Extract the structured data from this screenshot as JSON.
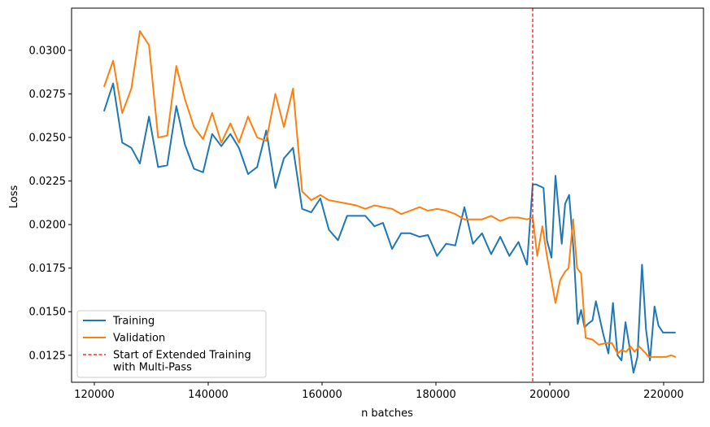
{
  "chart_data": {
    "type": "line",
    "title": "",
    "xlabel": "n batches",
    "ylabel": "Loss",
    "xlim": [
      116000,
      227000
    ],
    "ylim": [
      0.01095,
      0.03242
    ],
    "xticks": [
      120000,
      140000,
      160000,
      180000,
      200000,
      220000
    ],
    "xtick_labels": [
      "120000",
      "140000",
      "160000",
      "180000",
      "200000",
      "220000"
    ],
    "yticks": [
      0.0125,
      0.015,
      0.0175,
      0.02,
      0.0225,
      0.025,
      0.0275,
      0.03
    ],
    "ytick_labels": [
      "0.0125",
      "0.0150",
      "0.0175",
      "0.0200",
      "0.0225",
      "0.0250",
      "0.0275",
      "0.0300"
    ],
    "grid": false,
    "legend_position": "lower-left",
    "series": [
      {
        "name": "Training",
        "color": "#1f77b4",
        "x": [
          121700,
          123300,
          124900,
          126500,
          128000,
          129600,
          131200,
          132800,
          134400,
          135900,
          137500,
          139100,
          140700,
          142300,
          143900,
          145400,
          147000,
          148600,
          150200,
          151800,
          153300,
          154900,
          156500,
          158100,
          159700,
          161200,
          162800,
          164400,
          166000,
          167600,
          169200,
          170700,
          172300,
          173900,
          175500,
          177100,
          178600,
          180200,
          181800,
          183400,
          185000,
          186500,
          188100,
          189700,
          191300,
          192900,
          194500,
          196000,
          197000,
          197600,
          198300,
          198900,
          199500,
          200300,
          201000,
          202100,
          202700,
          203400,
          204200,
          204900,
          205500,
          206100,
          206700,
          207500,
          208100,
          209400,
          210300,
          211100,
          211900,
          212600,
          213300,
          214100,
          214700,
          215400,
          216200,
          216900,
          217600,
          218400,
          219100,
          219900,
          220700,
          221400,
          222100
        ],
        "y": [
          0.0265,
          0.0281,
          0.0247,
          0.0244,
          0.0235,
          0.0262,
          0.0233,
          0.0234,
          0.0268,
          0.0246,
          0.0232,
          0.023,
          0.0252,
          0.0245,
          0.0252,
          0.0244,
          0.0229,
          0.0233,
          0.0254,
          0.0221,
          0.0238,
          0.0244,
          0.0209,
          0.0207,
          0.0215,
          0.0197,
          0.0191,
          0.0205,
          0.0205,
          0.0205,
          0.0199,
          0.0201,
          0.0186,
          0.0195,
          0.0195,
          0.0193,
          0.0194,
          0.0182,
          0.0189,
          0.0188,
          0.021,
          0.0189,
          0.0195,
          0.0183,
          0.0193,
          0.0182,
          0.019,
          0.0177,
          0.0223,
          0.0223,
          0.0222,
          0.0221,
          0.0191,
          0.0181,
          0.0228,
          0.0189,
          0.0212,
          0.0217,
          0.0184,
          0.0143,
          0.0151,
          0.0141,
          0.0143,
          0.0145,
          0.0156,
          0.0137,
          0.0126,
          0.0155,
          0.0125,
          0.0122,
          0.0144,
          0.0128,
          0.0115,
          0.0124,
          0.0177,
          0.014,
          0.0122,
          0.0153,
          0.0142,
          0.0138,
          0.0138,
          0.0138,
          0.0138
        ]
      },
      {
        "name": "Validation",
        "color": "#ff7f0e",
        "x": [
          121700,
          123300,
          124900,
          126500,
          128000,
          129600,
          131200,
          132800,
          134400,
          135900,
          137500,
          139100,
          140700,
          142300,
          143900,
          145400,
          147000,
          148600,
          150200,
          151800,
          153300,
          154900,
          156500,
          158100,
          159700,
          161200,
          162800,
          164400,
          166000,
          167600,
          169200,
          170700,
          172300,
          173900,
          175500,
          177100,
          178600,
          180200,
          181800,
          183400,
          185000,
          186500,
          188100,
          189700,
          191300,
          192900,
          194500,
          196000,
          197000,
          197800,
          198700,
          199500,
          201000,
          201800,
          202700,
          203300,
          204100,
          204800,
          205500,
          206300,
          207500,
          208600,
          209900,
          210900,
          211900,
          212600,
          213400,
          214200,
          214900,
          215700,
          216600,
          217400,
          218200,
          219300,
          220400,
          221300,
          222100
        ],
        "y": [
          0.0279,
          0.0294,
          0.0264,
          0.0278,
          0.0311,
          0.0303,
          0.025,
          0.0251,
          0.0291,
          0.0272,
          0.0256,
          0.0249,
          0.0264,
          0.0247,
          0.0258,
          0.0247,
          0.0262,
          0.025,
          0.0248,
          0.0275,
          0.0256,
          0.0278,
          0.0219,
          0.0214,
          0.0217,
          0.0214,
          0.0213,
          0.0212,
          0.0211,
          0.0209,
          0.0211,
          0.021,
          0.0209,
          0.0206,
          0.0208,
          0.021,
          0.0208,
          0.0209,
          0.0208,
          0.0206,
          0.0203,
          0.0203,
          0.0203,
          0.0205,
          0.0202,
          0.0204,
          0.0204,
          0.0203,
          0.0204,
          0.0182,
          0.0199,
          0.0182,
          0.0155,
          0.0168,
          0.0173,
          0.0175,
          0.0203,
          0.0175,
          0.0172,
          0.0135,
          0.0134,
          0.0131,
          0.0132,
          0.0132,
          0.0126,
          0.0128,
          0.0127,
          0.013,
          0.0127,
          0.013,
          0.0127,
          0.0124,
          0.0124,
          0.0124,
          0.0124,
          0.0125,
          0.0124
        ]
      }
    ],
    "annotations": [
      {
        "type": "vline",
        "x": 197000,
        "color": "#ff0000",
        "style": "dashed",
        "label": "Start of Extended Training\nwith Multi-Pass"
      }
    ]
  }
}
